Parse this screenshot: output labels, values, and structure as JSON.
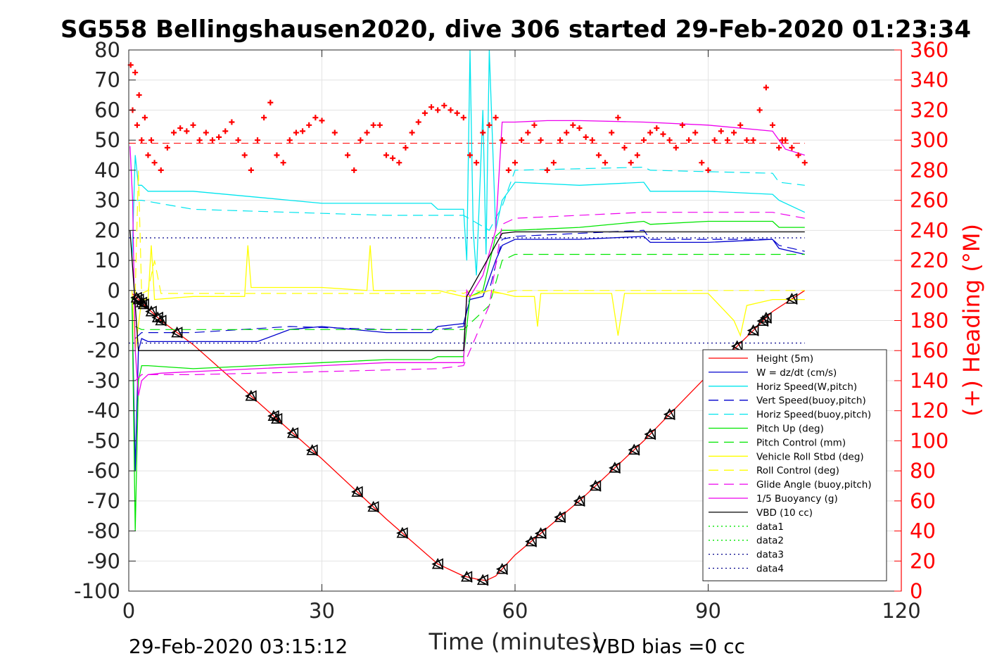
{
  "chart_data": {
    "type": "line",
    "title": "SG558 Bellingshausen2020, dive 306 started 29-Feb-2020 01:23:34",
    "xlabel": "Time (minutes)",
    "ylabel_right": "(+) Heading (°M)",
    "xlim": [
      0,
      120
    ],
    "ylim": [
      -100,
      80
    ],
    "ylim_right": [
      0,
      360
    ],
    "x_ticks": [
      0,
      30,
      60,
      90,
      120
    ],
    "y_ticks": [
      80,
      70,
      60,
      50,
      40,
      30,
      20,
      10,
      0,
      -10,
      -20,
      -30,
      -40,
      -50,
      -60,
      -70,
      -80,
      -90,
      -100
    ],
    "y_right_ticks": [
      360,
      340,
      320,
      300,
      280,
      260,
      240,
      220,
      200,
      180,
      160,
      140,
      120,
      100,
      80,
      60,
      40,
      20,
      0
    ],
    "grid": true,
    "legend_position": "bottom-right",
    "footer_left": "29-Feb-2020 03:15:12",
    "footer_right": "VBD bias =0 cc",
    "series": [
      {
        "name": "Height (5m)",
        "color": "#ff0000",
        "style": "solid",
        "x": [
          0.5,
          1,
          2,
          5,
          10,
          20,
          30,
          40,
          48,
          52,
          54,
          55.5,
          57,
          60,
          70,
          80,
          90,
          100,
          105
        ],
        "y": [
          -1,
          -2,
          -4,
          -10,
          -18,
          -37,
          -56,
          -76,
          -91,
          -95,
          -96,
          -96.5,
          -95,
          -88,
          -70,
          -50,
          -28,
          -7,
          0
        ]
      },
      {
        "name": "W = dz/dt (cm/s)",
        "color": "#0000cd",
        "style": "solid",
        "x": [
          0.5,
          1,
          1.5,
          2,
          3,
          10,
          20,
          25,
          30,
          40,
          47,
          48,
          52,
          53,
          55,
          57,
          58,
          60,
          70,
          80,
          81,
          90,
          100,
          101,
          105
        ],
        "y": [
          -3,
          -60,
          -20,
          -16,
          -17,
          -17,
          -17,
          -13,
          -12,
          -14,
          -14,
          -12,
          -11,
          -3,
          -2,
          10,
          15,
          17,
          17,
          18,
          16,
          16,
          17,
          14,
          12
        ]
      },
      {
        "name": "Horiz Speed(W,pitch)",
        "color": "#00e5ee",
        "style": "solid",
        "x": [
          0.5,
          1,
          1.5,
          2,
          3,
          10,
          20,
          25,
          30,
          40,
          47,
          48,
          52,
          52.5,
          53,
          53.5,
          54,
          55,
          55.5,
          56,
          57,
          58,
          60,
          70,
          80,
          81,
          90,
          100,
          101,
          105
        ],
        "y": [
          10,
          45,
          35,
          35,
          33,
          33,
          31,
          30,
          29,
          29,
          29,
          27,
          27,
          10,
          80,
          20,
          5,
          60,
          12,
          80,
          20,
          30,
          36,
          35,
          36,
          33,
          33,
          32,
          30,
          26
        ]
      },
      {
        "name": "Vert Speed(buoy,pitch)",
        "color": "#0000cd",
        "style": "dash",
        "x": [
          1,
          2,
          10,
          25,
          40,
          48,
          52,
          53,
          56,
          58,
          60,
          80,
          81,
          100,
          101,
          105
        ],
        "y": [
          -16,
          -14,
          -14,
          -12,
          -13,
          -13,
          -12,
          -2,
          0,
          17,
          18,
          20,
          17,
          17,
          15,
          13
        ]
      },
      {
        "name": "Horiz Speed(buoy,pitch)",
        "color": "#00e5ee",
        "style": "dash",
        "x": [
          1,
          2,
          10,
          25,
          40,
          48,
          52,
          56,
          58,
          60,
          80,
          81,
          100,
          101,
          105
        ],
        "y": [
          30,
          30,
          27,
          26,
          25,
          25,
          25,
          20,
          28,
          40,
          41,
          40,
          39,
          36,
          35
        ]
      },
      {
        "name": "Pitch Up (deg)",
        "color": "#00e600",
        "style": "solid",
        "x": [
          0.5,
          1,
          1.5,
          2,
          3,
          10,
          20,
          30,
          40,
          47,
          48,
          52,
          53,
          55,
          57,
          58,
          60,
          70,
          80,
          81,
          90,
          100,
          101,
          105
        ],
        "y": [
          -2,
          -80,
          -30,
          -25,
          -25,
          -26,
          -25,
          -24,
          -23,
          -23,
          -22,
          -22,
          -2,
          0,
          18,
          20,
          20,
          21,
          23,
          22,
          23,
          23,
          21,
          21
        ]
      },
      {
        "name": "Pitch Control (mm)",
        "color": "#00e600",
        "style": "dash",
        "x": [
          1,
          2,
          10,
          48,
          52,
          56,
          58,
          60,
          80,
          81,
          100,
          101,
          105
        ],
        "y": [
          -12,
          -13,
          -13,
          -13,
          -13,
          -5,
          10,
          12,
          12,
          12,
          12,
          12,
          12
        ]
      },
      {
        "name": "Vehicle Roll Stbd (deg)",
        "color": "#ffff00",
        "style": "solid",
        "x": [
          0.5,
          1,
          2,
          3,
          3.5,
          4,
          10,
          18,
          18.5,
          19,
          30,
          37,
          37.5,
          38,
          48,
          52,
          53,
          56,
          60,
          63,
          63.5,
          64,
          75,
          76,
          77,
          90,
          94,
          95,
          96,
          100,
          105
        ],
        "y": [
          0,
          -20,
          -3,
          -3,
          15,
          -3,
          -2,
          -2,
          15,
          1,
          1,
          0,
          15,
          0,
          0,
          -2,
          -2,
          0,
          -2,
          -2,
          -12,
          -1,
          -1,
          -15,
          -1,
          -1,
          -10,
          -15,
          -5,
          -3,
          -3
        ]
      },
      {
        "name": "Roll Control (deg)",
        "color": "#ffff00",
        "style": "dash",
        "x": [
          1,
          1.5,
          2,
          3,
          4,
          5,
          48,
          50,
          52,
          53,
          58,
          60,
          90,
          105
        ],
        "y": [
          -1,
          40,
          -1,
          0,
          10,
          -1,
          -1,
          0,
          -1,
          0,
          -1,
          0,
          0,
          0
        ]
      },
      {
        "name": "Glide Angle (buoy,pitch)",
        "color": "#ee00ee",
        "style": "dash",
        "x": [
          1,
          2,
          10,
          30,
          48,
          52,
          56,
          58,
          60,
          80,
          100,
          105
        ],
        "y": [
          -30,
          -28,
          -28,
          -27,
          -26,
          -25,
          -5,
          22,
          24,
          26,
          26,
          24
        ]
      },
      {
        "name": "1/5 Buoyancy (g)",
        "color": "#ee00ee",
        "style": "solid",
        "x": [
          0.2,
          0.6,
          1,
          1.5,
          2,
          3,
          5,
          10,
          20,
          30,
          40,
          48,
          52,
          52.5,
          53,
          55,
          57,
          58,
          60,
          65,
          70,
          80,
          90,
          100,
          102,
          105
        ],
        "y": [
          48,
          30,
          -20,
          -35,
          -30,
          -28,
          -27.5,
          -27,
          -26,
          -25,
          -24,
          -24,
          -24,
          0,
          -2,
          5,
          20,
          56,
          56,
          56.5,
          56.5,
          56,
          55,
          53,
          47,
          45
        ]
      },
      {
        "name": "VBD (10 cc)",
        "color": "#000000",
        "style": "solid",
        "x": [
          0.2,
          1.5,
          3,
          52,
          52.5,
          58,
          60,
          80,
          90,
          100,
          105
        ],
        "y": [
          20,
          -20,
          -20,
          -20,
          -2,
          19,
          19.5,
          19.5,
          19.5,
          19.5,
          19.5
        ]
      },
      {
        "name": "data1",
        "color": "#00e600",
        "style": "dot",
        "x": [],
        "y": []
      },
      {
        "name": "data2",
        "color": "#00e600",
        "style": "dot",
        "x": [],
        "y": []
      },
      {
        "name": "data3",
        "color": "#00008b",
        "style": "dot",
        "x": [
          0,
          105
        ],
        "y": [
          17.5,
          17.5
        ]
      },
      {
        "name": "data4",
        "color": "#00008b",
        "style": "dot",
        "x": [
          0,
          105
        ],
        "y": [
          -17.5,
          -17.5
        ]
      }
    ],
    "heading_series": {
      "axis": "right",
      "color": "#ff0000",
      "marker": "+",
      "mean_line": 298,
      "x": [
        0.3,
        0.6,
        1.0,
        1.3,
        1.6,
        2.0,
        2.5,
        3,
        3.5,
        4,
        5,
        6,
        7,
        8,
        9,
        10,
        11,
        12,
        13,
        14,
        15,
        16,
        17,
        18,
        19,
        20,
        21,
        22,
        23,
        24,
        25,
        26,
        27,
        28,
        29,
        30,
        32,
        34,
        35,
        36,
        37,
        38,
        39,
        40,
        41,
        42,
        43,
        44,
        45,
        46,
        47,
        48,
        49,
        50,
        51,
        52,
        53,
        54,
        55,
        56,
        57,
        58,
        59,
        60,
        61,
        62,
        63,
        64,
        65,
        66,
        67,
        68,
        69,
        70,
        71,
        72,
        73,
        74,
        75,
        76,
        77,
        78,
        79,
        80,
        81,
        82,
        83,
        84,
        85,
        86,
        87,
        88,
        89,
        90,
        91,
        92,
        93,
        94,
        95,
        96,
        97,
        98,
        99,
        100,
        101,
        101.5,
        102,
        103,
        104,
        105
      ],
      "y": [
        350,
        320,
        345,
        310,
        330,
        300,
        315,
        290,
        300,
        285,
        280,
        295,
        305,
        308,
        306,
        310,
        300,
        305,
        300,
        302,
        306,
        312,
        300,
        290,
        280,
        300,
        315,
        325,
        290,
        285,
        300,
        305,
        306,
        310,
        315,
        313,
        305,
        290,
        280,
        300,
        305,
        310,
        310,
        290,
        288,
        285,
        295,
        305,
        312,
        318,
        322,
        320,
        323,
        320,
        318,
        315,
        290,
        285,
        305,
        310,
        315,
        300,
        280,
        285,
        300,
        305,
        310,
        300,
        280,
        285,
        300,
        305,
        310,
        308,
        302,
        300,
        290,
        285,
        305,
        315,
        295,
        285,
        290,
        300,
        305,
        308,
        304,
        300,
        295,
        310,
        300,
        305,
        285,
        280,
        300,
        306,
        300,
        305,
        310,
        300,
        300,
        320,
        335,
        310,
        295,
        300,
        300,
        295,
        290,
        285
      ]
    },
    "markers": {
      "description_none": "",
      "x": [
        1.2,
        1.5,
        2,
        2.3,
        3.5,
        4.5,
        5,
        7.5,
        19,
        22.5,
        23,
        25.5,
        28.5,
        35.5,
        38,
        42.5,
        48,
        52.5,
        55,
        58,
        62.5,
        64,
        67,
        70,
        72.5,
        75.5,
        78.5,
        81,
        84,
        94.5,
        97,
        98.5,
        99,
        103
      ]
    }
  }
}
